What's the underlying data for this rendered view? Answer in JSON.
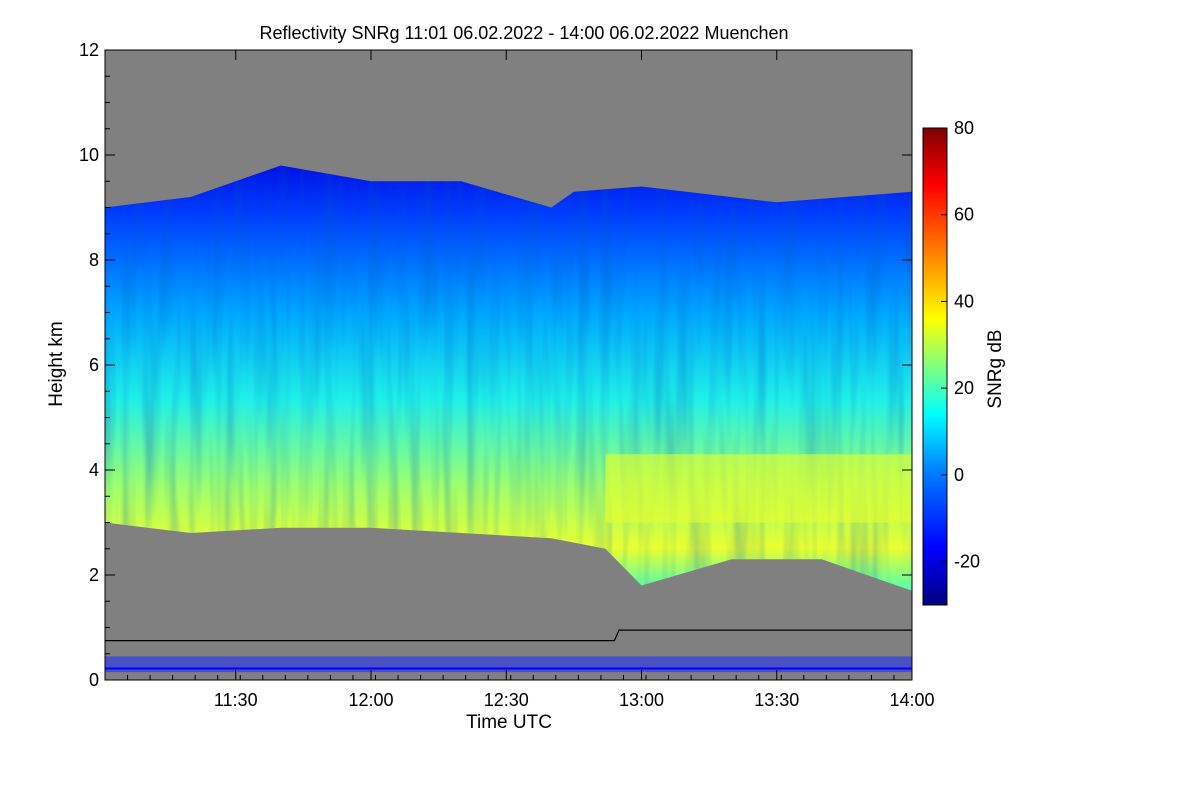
{
  "chart_data": {
    "type": "heatmap",
    "title": "Reflectivity SNRg   11:01 06.02.2022 - 14:00 06.02.2022 Muenchen",
    "xlabel": "Time UTC",
    "ylabel": "Height km",
    "xlim": [
      "11:01",
      "14:00"
    ],
    "ylim": [
      0,
      12
    ],
    "x_ticks": [
      "11:30",
      "12:00",
      "12:30",
      "13:00",
      "13:30",
      "14:00"
    ],
    "y_ticks": [
      "0",
      "2",
      "4",
      "6",
      "8",
      "10",
      "12"
    ],
    "colorbar": {
      "label": "SNRg dB",
      "range": [
        -30,
        80
      ],
      "ticks": [
        "-20",
        "0",
        "20",
        "40",
        "60",
        "80"
      ],
      "colormap": [
        "#00007f",
        "#0000ff",
        "#007fff",
        "#00ffff",
        "#7fff7f",
        "#ffff00",
        "#ff7f00",
        "#ff0000",
        "#7f0000"
      ]
    },
    "no_signal_color": "#808080",
    "echo_base_km": [
      {
        "time": "11:01",
        "height": 3.0
      },
      {
        "time": "11:20",
        "height": 2.8
      },
      {
        "time": "11:40",
        "height": 2.9
      },
      {
        "time": "12:00",
        "height": 2.9
      },
      {
        "time": "12:20",
        "height": 2.8
      },
      {
        "time": "12:40",
        "height": 2.7
      },
      {
        "time": "12:52",
        "height": 2.5
      },
      {
        "time": "13:00",
        "height": 1.8
      },
      {
        "time": "13:20",
        "height": 2.3
      },
      {
        "time": "13:40",
        "height": 2.3
      },
      {
        "time": "14:00",
        "height": 1.7
      }
    ],
    "echo_top_km": [
      {
        "time": "11:01",
        "height": 9.0
      },
      {
        "time": "11:20",
        "height": 9.2
      },
      {
        "time": "11:40",
        "height": 9.8
      },
      {
        "time": "12:00",
        "height": 9.5
      },
      {
        "time": "12:20",
        "height": 9.5
      },
      {
        "time": "12:40",
        "height": 9.0
      },
      {
        "time": "12:45",
        "height": 9.3
      },
      {
        "time": "13:00",
        "height": 9.4
      },
      {
        "time": "13:30",
        "height": 9.1
      },
      {
        "time": "14:00",
        "height": 9.3
      }
    ],
    "max_snr_layer_km": [
      3.0,
      4.3
    ],
    "reference_line_km": [
      {
        "time": "11:01",
        "height": 0.75
      },
      {
        "time": "12:54",
        "height": 0.75
      },
      {
        "time": "12:55",
        "height": 0.95
      },
      {
        "time": "14:00",
        "height": 0.95
      }
    ]
  }
}
